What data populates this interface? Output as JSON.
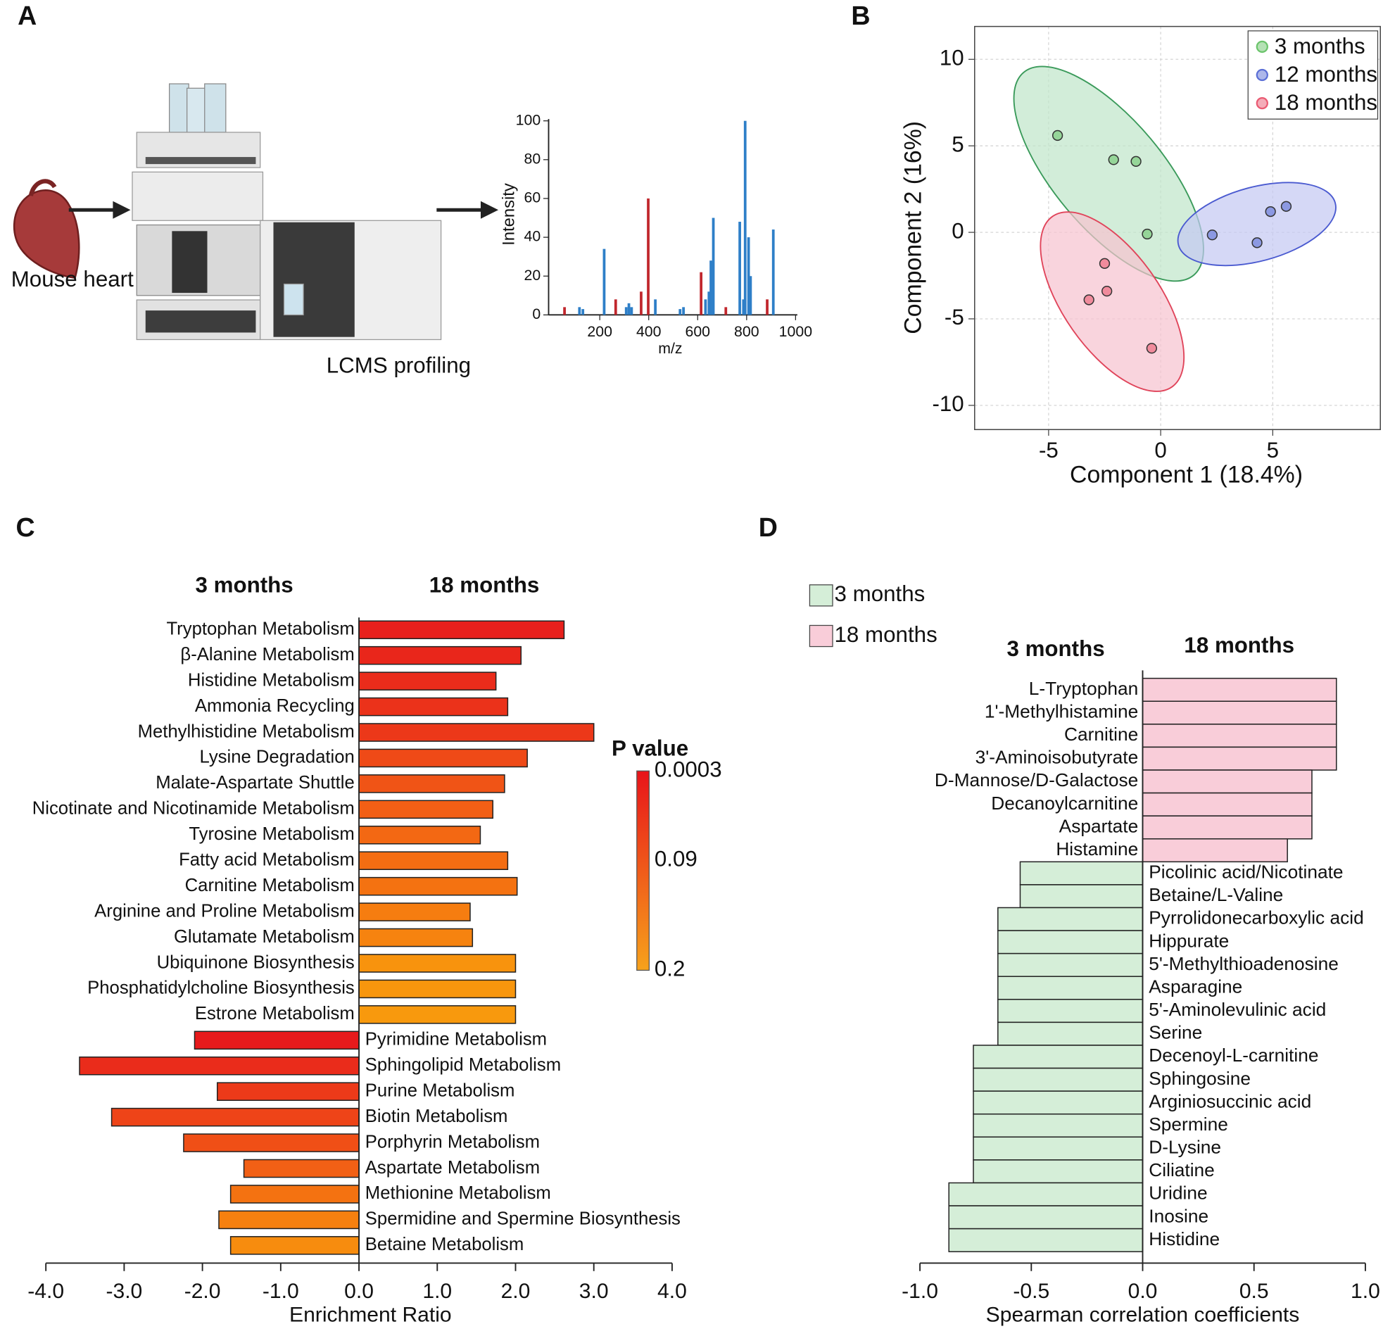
{
  "panel_labels": [
    "A",
    "B",
    "C",
    "D"
  ],
  "chart_data": [
    {
      "type": "spectrum",
      "annotations": [
        "Mouse heart",
        "LCMS profiling"
      ],
      "xlabel": "m/z",
      "ylabel": "Intensity",
      "xlim": [
        0,
        1000
      ],
      "ylim": [
        0,
        100
      ],
      "xticks": [
        200,
        400,
        600,
        800,
        1000
      ],
      "yticks": [
        0,
        20,
        40,
        60,
        80,
        100
      ],
      "series": [
        {
          "color": "#c1272d",
          "x": [
            56,
            265,
            369,
            398,
            614,
            715,
            884
          ],
          "values": [
            4,
            8,
            12,
            60,
            22,
            4,
            8
          ]
        },
        {
          "color": "#2e7fc8",
          "x": [
            117,
            131,
            218,
            308,
            319,
            330,
            427,
            528,
            542,
            632,
            646,
            654,
            664,
            772,
            787,
            794,
            808,
            816,
            909
          ],
          "values": [
            4,
            3,
            34,
            4,
            6,
            4,
            8,
            3,
            4,
            8,
            12,
            28,
            50,
            48,
            8,
            100,
            40,
            20,
            44
          ]
        }
      ]
    },
    {
      "type": "scatter",
      "xlabel": "Component 1 (18.4%)",
      "ylabel": "Component 2 (16%)",
      "xlim": [
        -8.3,
        9.8
      ],
      "ylim": [
        -11.4,
        11.9
      ],
      "xticks": [
        -5,
        0,
        5
      ],
      "yticks": [
        -10,
        -5,
        0,
        5,
        10
      ],
      "grid": true,
      "legend": "top-right",
      "series": [
        {
          "name": "3 months",
          "color": "#6cc46c",
          "x": [
            -4.6,
            -2.1,
            -1.1,
            -0.6
          ],
          "values": [
            5.6,
            4.2,
            4.1,
            -0.1
          ]
        },
        {
          "name": "12 months",
          "color": "#5b6fd6",
          "x": [
            2.3,
            4.3,
            4.9,
            5.6
          ],
          "values": [
            -0.15,
            -0.6,
            1.2,
            1.5
          ]
        },
        {
          "name": "18 months",
          "color": "#ea5a72",
          "x": [
            -2.5,
            -3.2,
            -2.4,
            -0.4
          ],
          "values": [
            -1.8,
            -3.9,
            -3.4,
            -6.7
          ]
        }
      ]
    },
    {
      "type": "bar",
      "orientation": "horizontal",
      "xlabel": "Enrichment Ratio",
      "headers": [
        "3 months",
        "18 months"
      ],
      "xlim": [
        -4,
        4
      ],
      "xticks": [
        {
          "value": -4,
          "label": "-4.0"
        },
        {
          "value": -3,
          "label": "-3.0"
        },
        {
          "value": -2,
          "label": "-2.0"
        },
        {
          "value": -1,
          "label": "-1.0"
        },
        {
          "value": 0,
          "label": "0.0"
        },
        {
          "value": 1,
          "label": "1.0"
        },
        {
          "value": 2,
          "label": "2.0"
        },
        {
          "value": 3,
          "label": "3.0"
        },
        {
          "value": 4,
          "label": "4.0"
        }
      ],
      "categories": [
        "Tryptophan Metabolism",
        "β-Alanine Metabolism",
        "Histidine Metabolism",
        "Ammonia Recycling",
        "Methylhistidine Metabolism",
        "Lysine Degradation",
        "Malate-Aspartate Shuttle",
        "Nicotinate and Nicotinamide Metabolism",
        "Tyrosine Metabolism",
        "Fatty acid Metabolism",
        "Carnitine Metabolism",
        "Arginine and Proline Metabolism",
        "Glutamate Metabolism",
        "Ubiquinone Biosynthesis",
        "Phosphatidylcholine Biosynthesis",
        "Estrone Metabolism",
        "Pyrimidine Metabolism",
        "Sphingolipid Metabolism",
        "Purine Metabolism",
        "Biotin Metabolism",
        "Porphyrin Metabolism",
        "Aspartate Metabolism",
        "Methionine Metabolism",
        "Spermidine and Spermine Biosynthesis",
        "Betaine Metabolism"
      ],
      "values": [
        2.62,
        2.07,
        1.75,
        1.9,
        3.0,
        2.15,
        1.86,
        1.71,
        1.55,
        1.9,
        2.02,
        1.42,
        1.45,
        2.0,
        2.0,
        2.0,
        -2.1,
        -3.57,
        -1.81,
        -3.16,
        -2.24,
        -1.47,
        -1.64,
        -1.79,
        -1.64
      ],
      "colors": [
        "#e8201c",
        "#e9261b",
        "#ea2c1b",
        "#eb321a",
        "#ec3819",
        "#ef4a17",
        "#f05416",
        "#f25f15",
        "#f36813",
        "#f46d12",
        "#f47211",
        "#f67d10",
        "#f6830f",
        "#f8930d",
        "#f8960d",
        "#f8990d",
        "#e71a1c",
        "#ea2c1b",
        "#ec3a19",
        "#ee4418",
        "#f04f16",
        "#f26015",
        "#f47211",
        "#f6800f",
        "#f78c0e"
      ],
      "colorbar": {
        "title": "P value",
        "lim": [
          0.0003,
          0.2
        ],
        "ticks": [
          0.0003,
          0.09,
          0.2
        ],
        "colors": [
          "#e8141a",
          "#f7a21b"
        ]
      }
    },
    {
      "type": "bar",
      "orientation": "horizontal",
      "xlabel": "Spearman correlation coefficients",
      "headers": [
        "3 months",
        "18 months"
      ],
      "xlim": [
        -1,
        1
      ],
      "xticks": [
        {
          "value": -1,
          "label": "-1.0"
        },
        {
          "value": -0.5,
          "label": "-0.5"
        },
        {
          "value": 0,
          "label": "0.0"
        },
        {
          "value": 0.5,
          "label": "0.5"
        },
        {
          "value": 1,
          "label": "1.0"
        }
      ],
      "categories": [
        "L-Tryptophan",
        "1'-Methylhistamine",
        "Carnitine",
        "3'-Aminoisobutyrate",
        "D-Mannose/D-Galactose",
        "Decanoylcarnitine",
        "Aspartate",
        "Histamine",
        "Picolinic acid/Nicotinate",
        "Betaine/L-Valine",
        "Pyrrolidonecarboxylic acid",
        "Hippurate",
        "5'-Methylthioadenosine",
        "Asparagine",
        "5'-Aminolevulinic acid",
        "Serine",
        "Decenoyl-L-carnitine",
        "Sphingosine",
        "Arginiosuccinic acid",
        "Spermine",
        "D-Lysine",
        "Ciliatine",
        "Uridine",
        "Inosine",
        "Histidine"
      ],
      "series": [
        {
          "name": "3 months",
          "color": "#d5eed8",
          "values": [
            null,
            null,
            null,
            null,
            null,
            null,
            null,
            null,
            -0.55,
            -0.55,
            -0.65,
            -0.65,
            -0.65,
            -0.65,
            -0.65,
            -0.65,
            -0.76,
            -0.76,
            -0.76,
            -0.76,
            -0.76,
            -0.76,
            -0.87,
            -0.87,
            -0.87
          ]
        },
        {
          "name": "18 months",
          "color": "#f9cdd9",
          "values": [
            0.87,
            0.87,
            0.87,
            0.87,
            0.76,
            0.76,
            0.76,
            0.65,
            null,
            null,
            null,
            null,
            null,
            null,
            null,
            null,
            null,
            null,
            null,
            null,
            null,
            null,
            null,
            null,
            null
          ]
        }
      ]
    }
  ]
}
